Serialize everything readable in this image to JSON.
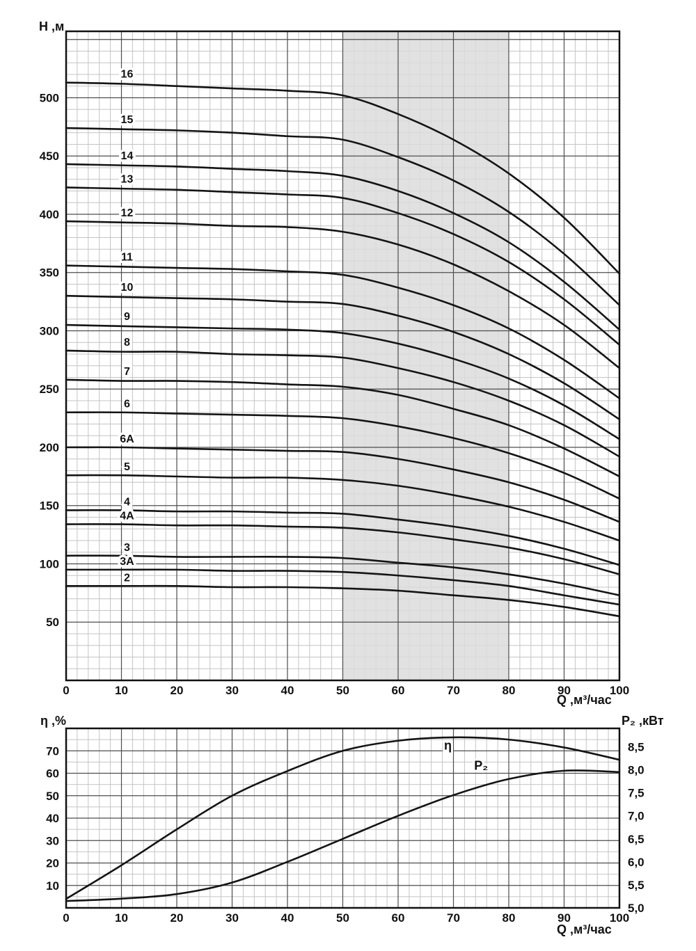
{
  "labels": {
    "top_ylabel": "Н ,м",
    "top_xlabel": "Q ,м³/час",
    "bottom_left_label": "η ,%",
    "bottom_right_label": "Р₂ ,кВт",
    "bottom_xlabel": "Q ,м³/час"
  },
  "chart_data": [
    {
      "type": "line",
      "ylabel": "Н ,м",
      "xlabel": "Q ,м³/час",
      "xlim": [
        0,
        100
      ],
      "ylim": [
        0,
        557
      ],
      "x_major": 10,
      "x_minor": 2,
      "y_major": 50,
      "y_minor": 10,
      "x_ticks": [
        0,
        10,
        20,
        30,
        40,
        50,
        60,
        70,
        80,
        90,
        100
      ],
      "y_ticks": [
        50,
        100,
        150,
        200,
        250,
        300,
        350,
        400,
        450,
        500
      ],
      "grid": {
        "major_color": "#4d4d4d",
        "minor_color": "#c4c4c4"
      },
      "shaded_region": {
        "x_from": 50,
        "x_to": 80,
        "color": "#dcdcdc"
      },
      "line_color": "#141414",
      "series_label_x": 11,
      "x": [
        0,
        10,
        20,
        30,
        40,
        50,
        60,
        70,
        80,
        90,
        100
      ],
      "series": [
        {
          "name": "16",
          "values": [
            513,
            512,
            510,
            508,
            506,
            502,
            486,
            464,
            435,
            397,
            349
          ]
        },
        {
          "name": "15",
          "values": [
            474,
            473,
            472,
            470,
            467,
            464,
            449,
            429,
            402,
            366,
            322
          ]
        },
        {
          "name": "14",
          "values": [
            443,
            442,
            441,
            439,
            437,
            433,
            420,
            401,
            376,
            342,
            301
          ]
        },
        {
          "name": "13",
          "values": [
            423,
            422,
            421,
            419,
            417,
            414,
            401,
            383,
            359,
            327,
            288
          ]
        },
        {
          "name": "12",
          "values": [
            394,
            393,
            392,
            390,
            389,
            385,
            374,
            357,
            334,
            305,
            268
          ]
        },
        {
          "name": "11",
          "values": [
            356,
            355,
            354,
            353,
            351,
            348,
            337,
            322,
            302,
            275,
            242
          ]
        },
        {
          "name": "10",
          "values": [
            330,
            329,
            328,
            327,
            325,
            323,
            313,
            299,
            280,
            255,
            224
          ]
        },
        {
          "name": "9",
          "values": [
            305,
            304,
            303,
            302,
            301,
            298,
            289,
            276,
            259,
            236,
            207
          ]
        },
        {
          "name": "8",
          "values": [
            283,
            282,
            282,
            280,
            279,
            277,
            268,
            256,
            240,
            219,
            192
          ]
        },
        {
          "name": "7",
          "values": [
            258,
            257,
            257,
            256,
            254,
            252,
            245,
            233,
            219,
            199,
            175
          ]
        },
        {
          "name": "6",
          "values": [
            230,
            230,
            229,
            228,
            227,
            225,
            218,
            208,
            195,
            178,
            156
          ]
        },
        {
          "name": "6A",
          "values": [
            200,
            200,
            199,
            198,
            197,
            196,
            190,
            181,
            170,
            155,
            136
          ]
        },
        {
          "name": "5",
          "values": [
            176,
            176,
            175,
            174,
            174,
            172,
            167,
            159,
            149,
            136,
            120
          ]
        },
        {
          "name": "4",
          "values": [
            146,
            146,
            145,
            145,
            144,
            143,
            138,
            132,
            124,
            113,
            99
          ]
        },
        {
          "name": "4A",
          "values": [
            134,
            134,
            133,
            133,
            132,
            131,
            127,
            121,
            114,
            104,
            91
          ]
        },
        {
          "name": "3",
          "values": [
            107,
            107,
            106,
            106,
            106,
            105,
            101,
            97,
            91,
            83,
            73
          ]
        },
        {
          "name": "3A",
          "values": [
            95,
            95,
            95,
            94,
            94,
            93,
            90,
            86,
            81,
            73,
            65
          ]
        },
        {
          "name": "2",
          "values": [
            81,
            81,
            81,
            80,
            80,
            79,
            77,
            73,
            69,
            63,
            55
          ]
        }
      ]
    },
    {
      "type": "line",
      "xlabel": "Q ,м³/час",
      "xlim": [
        0,
        100
      ],
      "x_major": 10,
      "x_minor": 2,
      "x_ticks": [
        0,
        10,
        20,
        30,
        40,
        50,
        60,
        70,
        80,
        90,
        100
      ],
      "grid": {
        "major_color": "#4d4d4d",
        "minor_color": "#c4c4c4"
      },
      "line_color": "#141414",
      "left_axis": {
        "label": "η ,%",
        "range": [
          0,
          80
        ],
        "ticks": [
          10,
          20,
          30,
          40,
          50,
          60,
          70
        ],
        "minor": 5
      },
      "right_axis": {
        "label": "Р₂ ,кВт",
        "range": [
          5.0,
          8.9
        ],
        "ticks": [
          {
            "v": 5.0,
            "t": "5,0"
          },
          {
            "v": 5.5,
            "t": "5,5"
          },
          {
            "v": 6.0,
            "t": "6,0"
          },
          {
            "v": 6.5,
            "t": "6,5"
          },
          {
            "v": 7.0,
            "t": "7,0"
          },
          {
            "v": 7.5,
            "t": "7,5"
          },
          {
            "v": 8.0,
            "t": "8,0"
          },
          {
            "v": 8.5,
            "t": "8,5"
          }
        ]
      },
      "x": [
        0,
        10,
        20,
        30,
        40,
        50,
        60,
        70,
        80,
        90,
        100
      ],
      "series": [
        {
          "name": "η",
          "axis": "left",
          "values": [
            4,
            19,
            35,
            50,
            61,
            70,
            74.5,
            76,
            75,
            71.5,
            66
          ],
          "label": {
            "x": 69,
            "v": 70.5
          }
        },
        {
          "name": "P₂",
          "axis": "right",
          "values": [
            5.15,
            5.2,
            5.3,
            5.55,
            6.0,
            6.5,
            7.0,
            7.45,
            7.8,
            7.98,
            7.95
          ],
          "label": {
            "x": 75,
            "v": 8.0
          }
        }
      ]
    }
  ]
}
